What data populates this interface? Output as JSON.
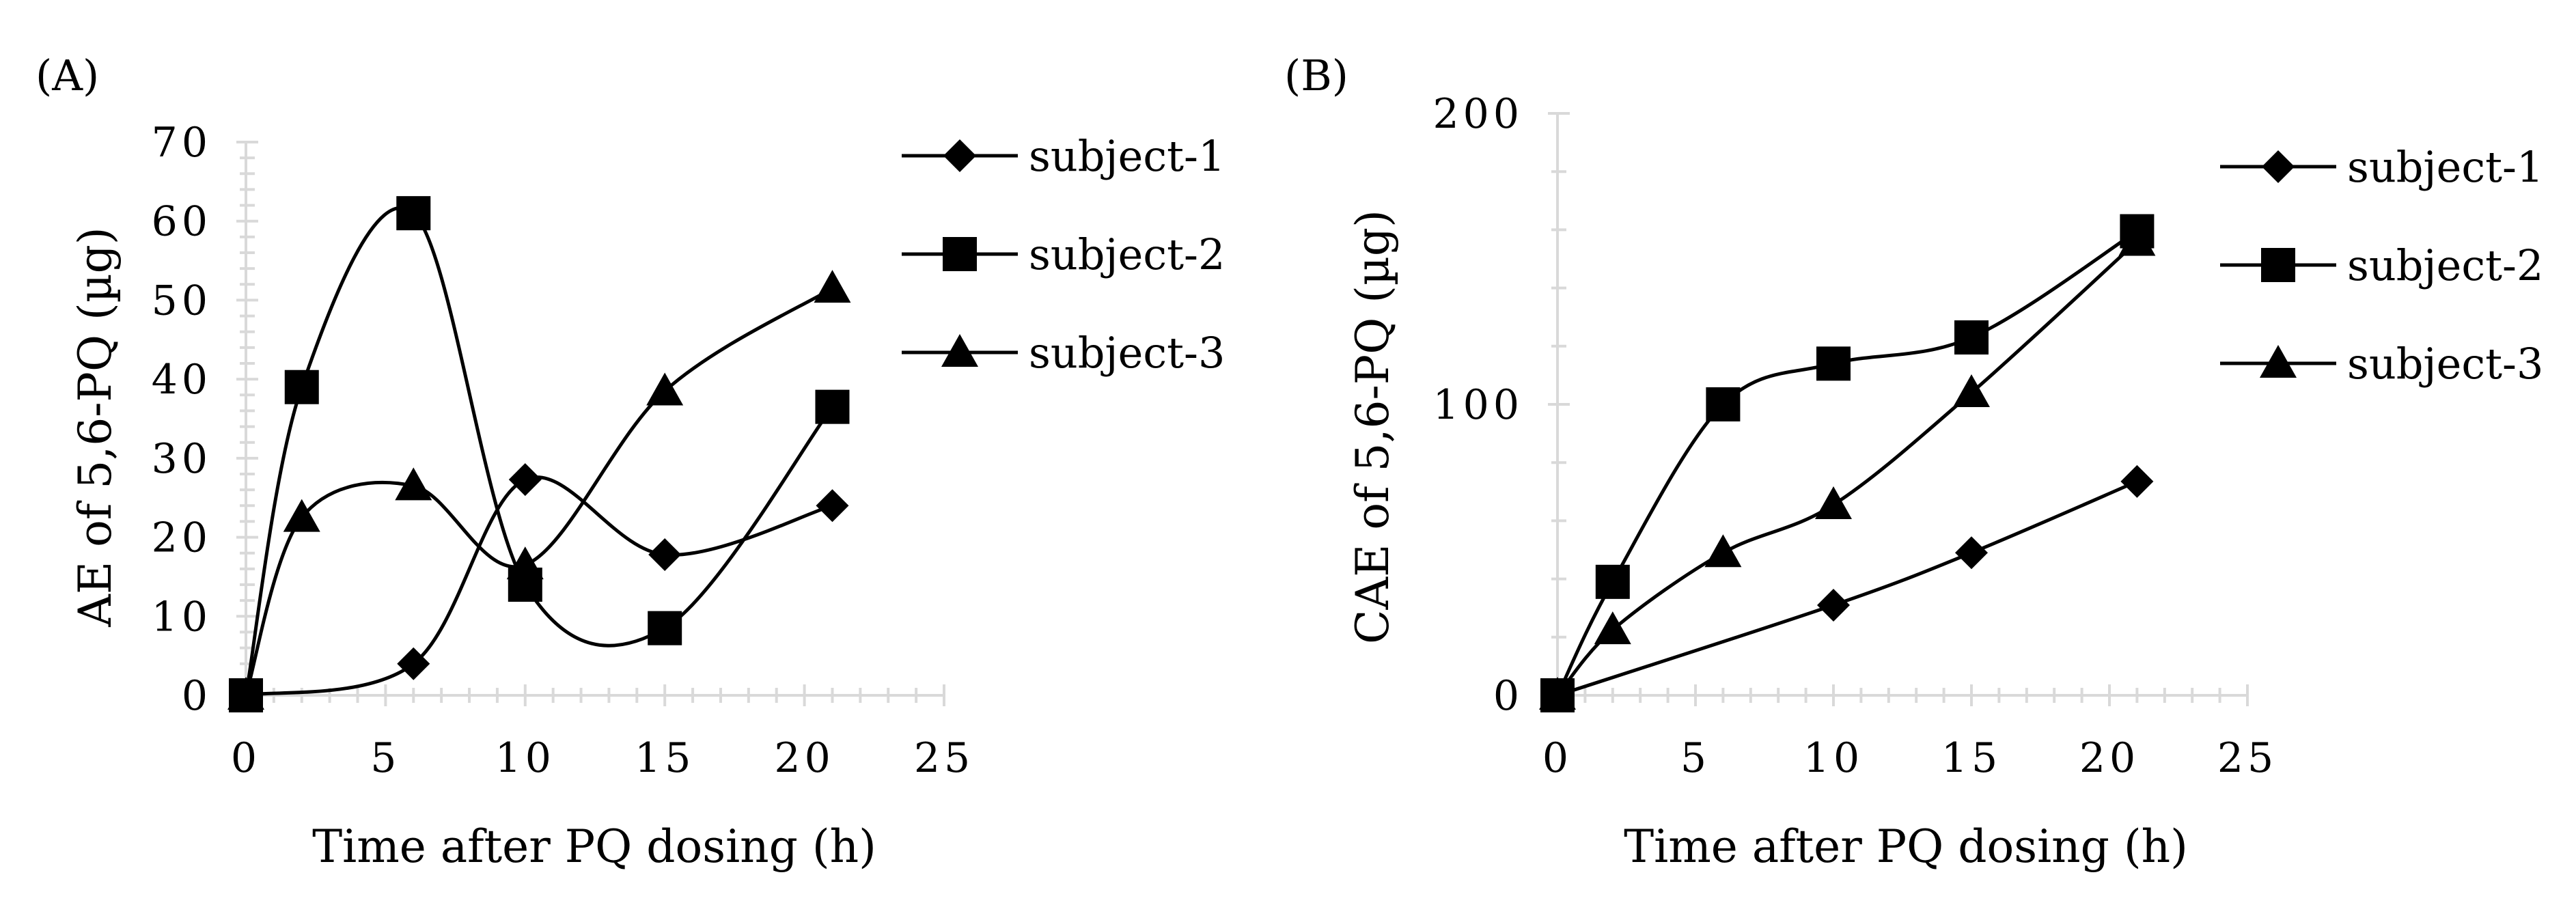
{
  "chart_data": [
    {
      "type": "line",
      "panel_label": "(A)",
      "xlabel": "Time after PQ dosing (h)",
      "ylabel": "AE of 5,6-PQ (µg)",
      "xlim": [
        0,
        25
      ],
      "ylim": [
        0,
        70
      ],
      "xticks": [
        "0",
        "5",
        "10",
        "15",
        "20",
        "25"
      ],
      "yticks": [
        "0",
        "10",
        "20",
        "30",
        "40",
        "50",
        "60",
        "70"
      ],
      "x_major_step": 5,
      "y_major_step": 10,
      "x_minor_step": 1,
      "y_minor_step": 2,
      "grid": false,
      "smooth": true,
      "legend": "right",
      "series": [
        {
          "name": "subject-1",
          "marker": "diamond",
          "x": [
            0,
            6,
            10,
            15,
            21
          ],
          "y": [
            0,
            4,
            27.3,
            17.8,
            24
          ]
        },
        {
          "name": "subject-2",
          "marker": "square",
          "x": [
            0,
            2,
            6,
            10,
            15,
            21
          ],
          "y": [
            0,
            39,
            61,
            14,
            8.5,
            36.5
          ]
        },
        {
          "name": "subject-3",
          "marker": "triangle",
          "x": [
            0,
            2,
            6,
            10,
            15,
            21
          ],
          "y": [
            0,
            22.5,
            26.5,
            16.5,
            38.5,
            51.5
          ]
        }
      ]
    },
    {
      "type": "line",
      "panel_label": "(B)",
      "xlabel": "Time after PQ dosing (h)",
      "ylabel": "CAE of 5,6-PQ (µg)",
      "xlim": [
        0,
        25
      ],
      "ylim": [
        0,
        200
      ],
      "xticks": [
        "0",
        "5",
        "10",
        "15",
        "20",
        "25"
      ],
      "yticks": [
        "0",
        "100",
        "200"
      ],
      "x_major_step": 5,
      "y_major_step": 100,
      "x_minor_step": 1,
      "y_minor_step": 20,
      "grid": false,
      "smooth": true,
      "legend": "right",
      "series": [
        {
          "name": "subject-1",
          "marker": "diamond",
          "x": [
            0,
            10,
            15,
            21
          ],
          "y": [
            0,
            31,
            49,
            73.5
          ]
        },
        {
          "name": "subject-2",
          "marker": "square",
          "x": [
            0,
            2,
            6,
            10,
            15,
            21
          ],
          "y": [
            0,
            39,
            100,
            114,
            123,
            159.5
          ]
        },
        {
          "name": "subject-3",
          "marker": "triangle",
          "x": [
            0,
            2,
            6,
            10,
            15,
            21
          ],
          "y": [
            0,
            22.5,
            49,
            65.5,
            104,
            156
          ]
        }
      ]
    }
  ]
}
